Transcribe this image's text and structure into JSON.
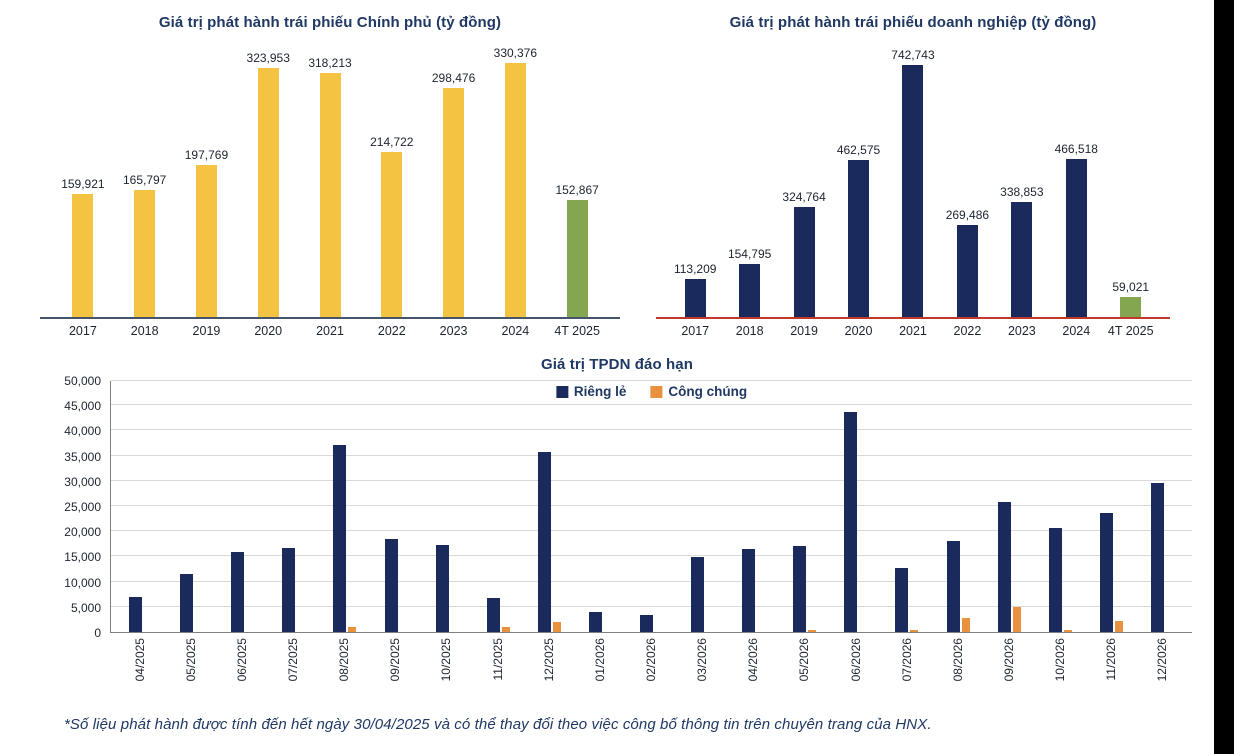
{
  "page": {
    "footnote": "*Số liệu phát hành được tính đến hết ngày 30/04/2025 và có thể thay đổi theo việc công bố thông tin trên chuyên trang của HNX."
  },
  "colors": {
    "yellow": "#F5C342",
    "navy": "#1B2A5C",
    "green": "#85A651",
    "orange": "#E8913E",
    "title_navy": "#1F3864",
    "axis_dark": "#44546A",
    "axis_red": "#C0392B",
    "axis_gray": "#808080",
    "grid": "#D9D9D9"
  },
  "chart_data": [
    {
      "id": "gov-bond-issuance",
      "type": "bar",
      "title": "Giá trị phát hành trái phiếu Chính phủ (tỷ đồng)",
      "categories": [
        "2017",
        "2018",
        "2019",
        "2020",
        "2021",
        "2022",
        "2023",
        "2024",
        "4T 2025"
      ],
      "values": [
        159921,
        165797,
        197769,
        323953,
        318213,
        214722,
        298476,
        330376,
        152867
      ],
      "bar_colors": [
        "yellow",
        "yellow",
        "yellow",
        "yellow",
        "yellow",
        "yellow",
        "yellow",
        "yellow",
        "green"
      ],
      "axis_color": "axis_dark",
      "ylim": [
        0,
        345000
      ],
      "grid": false,
      "data_labels": true,
      "legend_position": "none"
    },
    {
      "id": "corp-bond-issuance",
      "type": "bar",
      "title": "Giá trị phát hành trái phiếu doanh nghiệp (tỷ đồng)",
      "categories": [
        "2017",
        "2018",
        "2019",
        "2020",
        "2021",
        "2022",
        "2023",
        "2024",
        "4T 2025"
      ],
      "values": [
        113209,
        154795,
        324764,
        462575,
        742743,
        269486,
        338853,
        466518,
        59021
      ],
      "bar_colors": [
        "navy",
        "navy",
        "navy",
        "navy",
        "navy",
        "navy",
        "navy",
        "navy",
        "green"
      ],
      "axis_color": "axis_red",
      "ylim": [
        0,
        780000
      ],
      "grid": false,
      "data_labels": true,
      "legend_position": "none"
    },
    {
      "id": "tpdn-maturity",
      "type": "bar",
      "title": "Giá trị TPDN đáo hạn",
      "categories": [
        "04/2025",
        "05/2025",
        "06/2025",
        "07/2025",
        "08/2025",
        "09/2025",
        "10/2025",
        "11/2025",
        "12/2025",
        "01/2026",
        "02/2026",
        "03/2026",
        "04/2026",
        "05/2026",
        "06/2026",
        "07/2026",
        "08/2026",
        "09/2026",
        "10/2026",
        "11/2026",
        "12/2026"
      ],
      "series": [
        {
          "name": "Riêng lẻ",
          "color": "navy",
          "values": [
            7000,
            11500,
            15800,
            16700,
            37200,
            18400,
            17300,
            6800,
            35700,
            4000,
            3300,
            14800,
            16400,
            17000,
            43600,
            12700,
            18000,
            25700,
            20700,
            23700,
            29600
          ]
        },
        {
          "name": "Công chúng",
          "color": "orange",
          "values": [
            0,
            0,
            0,
            0,
            900,
            0,
            0,
            900,
            1900,
            0,
            0,
            0,
            0,
            300,
            0,
            300,
            2800,
            5000,
            400,
            2200,
            0
          ]
        }
      ],
      "ylim": [
        0,
        50000
      ],
      "ytick_step": 5000,
      "ytick_labels": [
        "0",
        "5,000",
        "10,000",
        "15,000",
        "20,000",
        "25,000",
        "30,000",
        "35,000",
        "40,000",
        "45,000",
        "50,000"
      ],
      "grid": true,
      "legend_position": "top-center"
    }
  ]
}
